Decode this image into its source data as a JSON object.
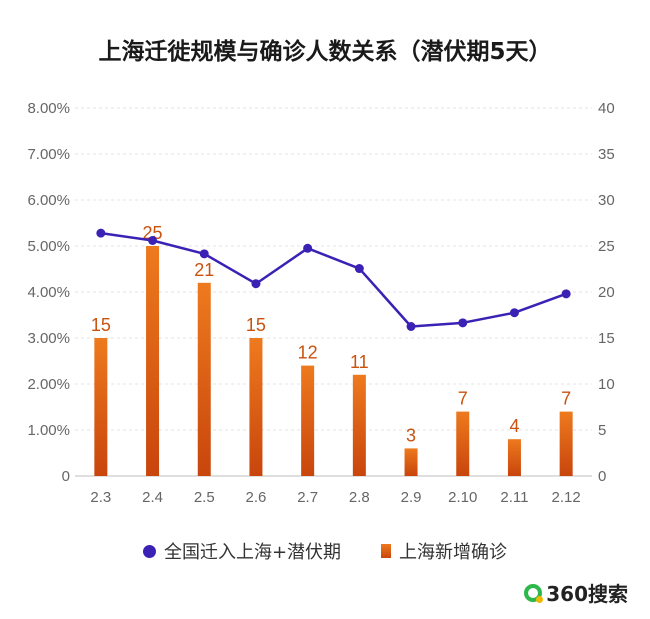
{
  "title": "上海迁徙规模与确诊人数关系（潜伏期5天）",
  "chart_data": {
    "type": "bar+line",
    "categories": [
      "2.3",
      "2.4",
      "2.5",
      "2.6",
      "2.7",
      "2.8",
      "2.9",
      "2.10",
      "2.11",
      "2.12"
    ],
    "series": [
      {
        "name": "全国迁入上海+潜伏期",
        "type": "line",
        "axis": "left",
        "color": "#3b22b4",
        "values": [
          5.28,
          5.12,
          4.83,
          4.18,
          4.95,
          4.51,
          3.25,
          3.33,
          3.55,
          3.96
        ]
      },
      {
        "name": "上海新增确诊",
        "type": "bar",
        "axis": "right",
        "color": "#e0621a",
        "values": [
          15,
          25,
          21,
          15,
          12,
          11,
          3,
          7,
          4,
          7
        ]
      }
    ],
    "left_axis": {
      "ticks": [
        "0",
        "1.00%",
        "2.00%",
        "3.00%",
        "4.00%",
        "5.00%",
        "6.00%",
        "7.00%",
        "8.00%"
      ],
      "ylim": [
        0,
        8
      ]
    },
    "right_axis": {
      "ticks": [
        "0",
        "5",
        "10",
        "15",
        "20",
        "25",
        "30",
        "35",
        "40"
      ],
      "ylim": [
        0,
        40
      ]
    },
    "grid": true,
    "legend_position": "bottom"
  },
  "legend": {
    "line_label": "全国迁入上海+潜伏期",
    "bar_label": "上海新增确诊"
  },
  "brand": {
    "name": "360搜索"
  }
}
